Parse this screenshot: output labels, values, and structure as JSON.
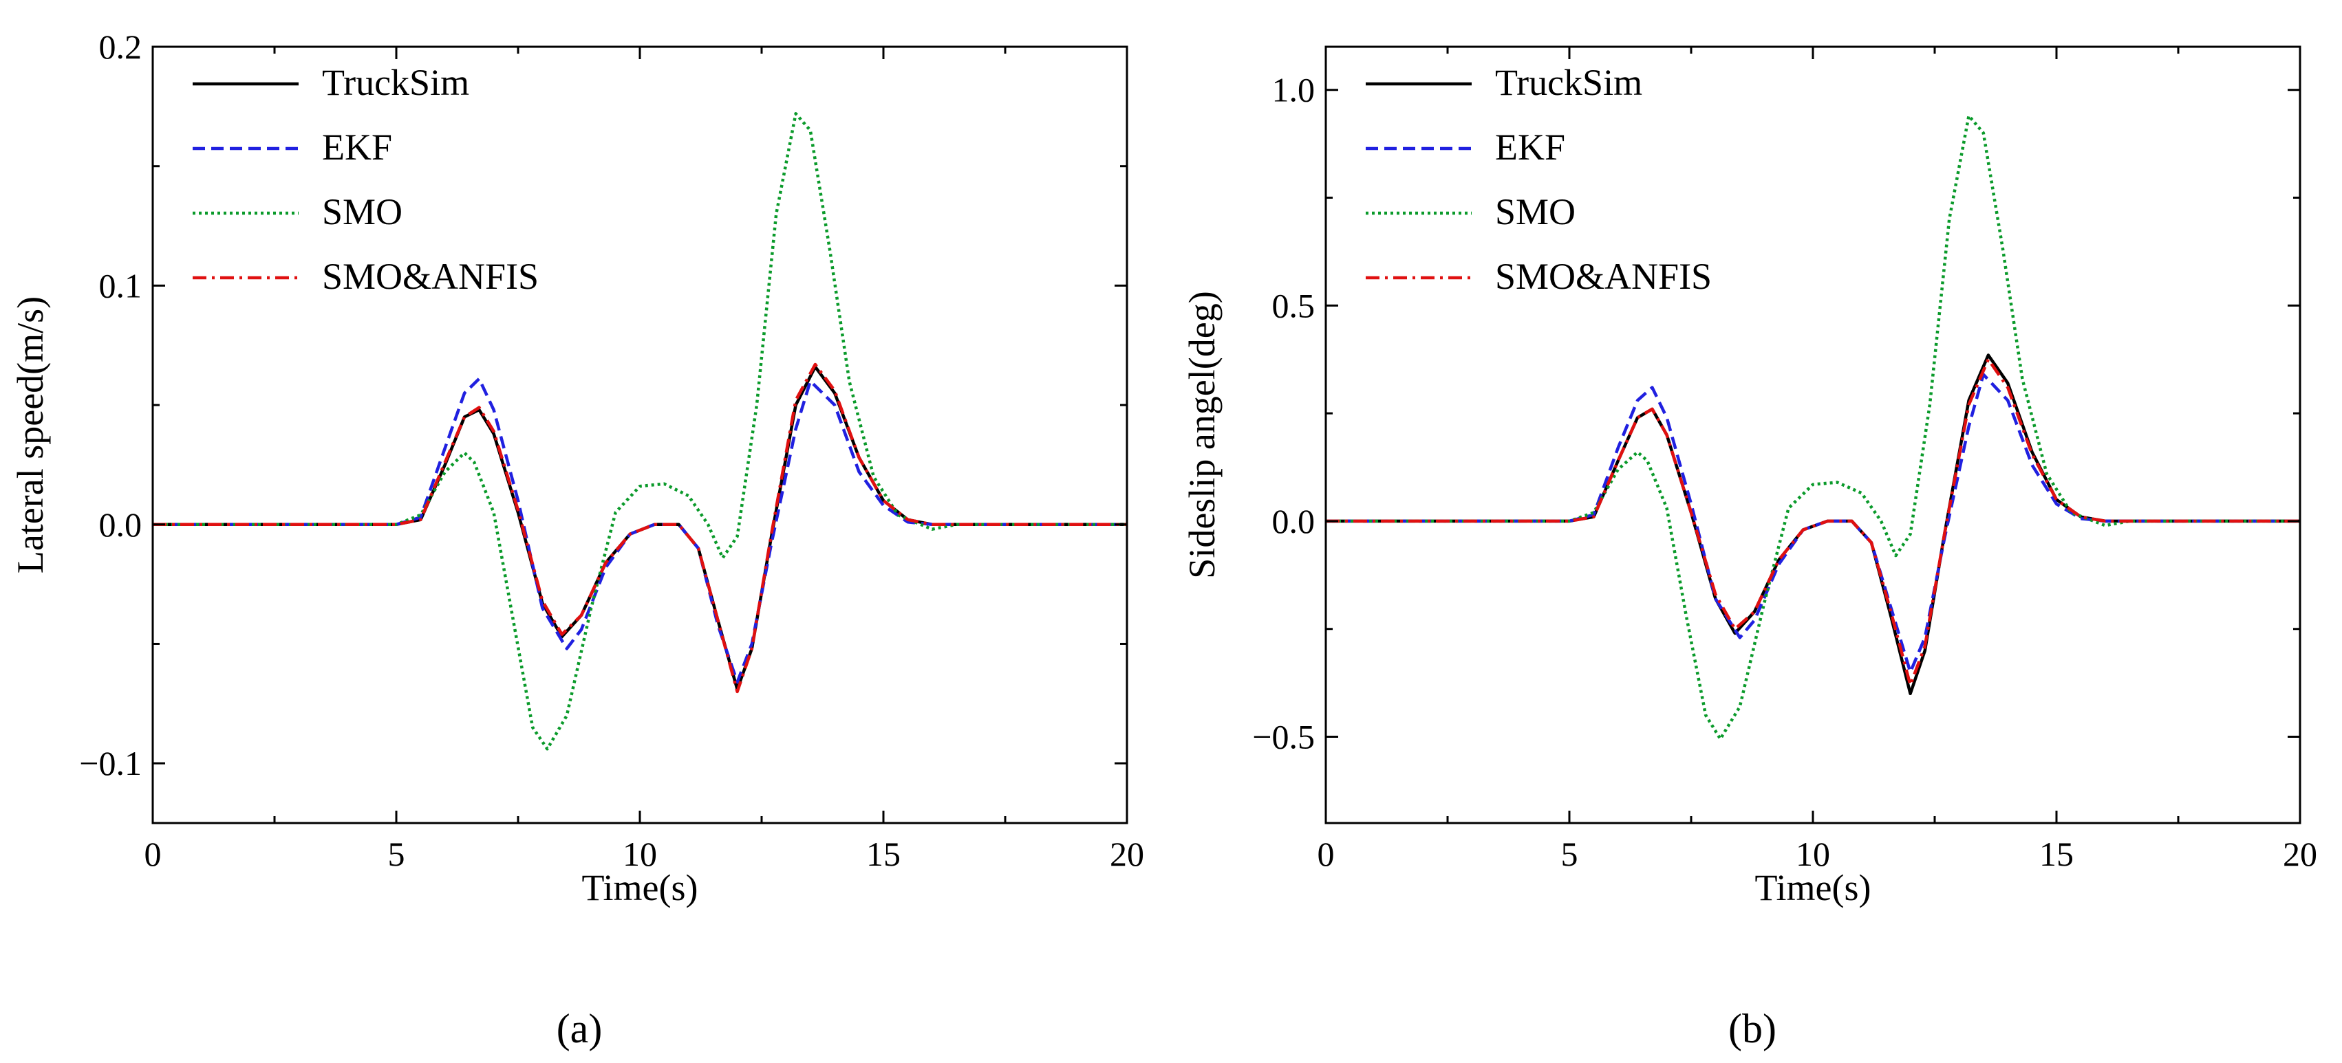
{
  "chart_data": [
    {
      "type": "line",
      "caption": "(a)",
      "xlabel": "Time(s)",
      "ylabel": "Lateral speed(m/s)",
      "xlim": [
        0,
        20
      ],
      "ylim": [
        -0.125,
        0.2
      ],
      "x_ticks": [
        0,
        5,
        10,
        15,
        20
      ],
      "x_tick_labels": [
        "0",
        "5",
        "10",
        "15",
        "20"
      ],
      "y_ticks": [
        -0.1,
        0.0,
        0.1,
        0.2
      ],
      "y_tick_labels": [
        "−0.1",
        "0.0",
        "0.1",
        "0.2"
      ],
      "legend_position": "top-left",
      "series": [
        {
          "name": "TruckSim",
          "color": "#000000",
          "dash": "solid",
          "points": [
            [
              0,
              0
            ],
            [
              5,
              0
            ],
            [
              5.5,
              0.002
            ],
            [
              6,
              0.025
            ],
            [
              6.4,
              0.045
            ],
            [
              6.7,
              0.048
            ],
            [
              7,
              0.038
            ],
            [
              7.5,
              0.005
            ],
            [
              8,
              -0.033
            ],
            [
              8.4,
              -0.047
            ],
            [
              8.8,
              -0.038
            ],
            [
              9.3,
              -0.016
            ],
            [
              9.8,
              -0.004
            ],
            [
              10.3,
              0
            ],
            [
              10.8,
              0
            ],
            [
              11.2,
              -0.01
            ],
            [
              11.6,
              -0.04
            ],
            [
              12,
              -0.069
            ],
            [
              12.3,
              -0.052
            ],
            [
              12.7,
              -0.005
            ],
            [
              13.2,
              0.05
            ],
            [
              13.6,
              0.066
            ],
            [
              14,
              0.055
            ],
            [
              14.5,
              0.028
            ],
            [
              15,
              0.01
            ],
            [
              15.5,
              0.002
            ],
            [
              16,
              0
            ],
            [
              20,
              0
            ]
          ]
        },
        {
          "name": "EKF",
          "color": "#2020e0",
          "dash": "dashed",
          "points": [
            [
              0,
              0
            ],
            [
              5,
              0
            ],
            [
              5.5,
              0.003
            ],
            [
              6,
              0.032
            ],
            [
              6.4,
              0.055
            ],
            [
              6.7,
              0.061
            ],
            [
              7,
              0.048
            ],
            [
              7.5,
              0.01
            ],
            [
              8,
              -0.035
            ],
            [
              8.5,
              -0.052
            ],
            [
              8.8,
              -0.044
            ],
            [
              9.3,
              -0.018
            ],
            [
              9.8,
              -0.004
            ],
            [
              10.3,
              0
            ],
            [
              10.8,
              0
            ],
            [
              11.2,
              -0.01
            ],
            [
              11.6,
              -0.042
            ],
            [
              12,
              -0.066
            ],
            [
              12.3,
              -0.05
            ],
            [
              12.7,
              -0.008
            ],
            [
              13.2,
              0.04
            ],
            [
              13.5,
              0.06
            ],
            [
              14,
              0.05
            ],
            [
              14.5,
              0.022
            ],
            [
              15,
              0.008
            ],
            [
              15.5,
              0.001
            ],
            [
              16,
              0
            ],
            [
              20,
              0
            ]
          ]
        },
        {
          "name": "SMO",
          "color": "#0a9a2a",
          "dash": "dotted",
          "points": [
            [
              0,
              0
            ],
            [
              5,
              0
            ],
            [
              5.5,
              0.004
            ],
            [
              6,
              0.022
            ],
            [
              6.4,
              0.03
            ],
            [
              6.6,
              0.026
            ],
            [
              7,
              0.005
            ],
            [
              7.4,
              -0.04
            ],
            [
              7.8,
              -0.085
            ],
            [
              8.1,
              -0.094
            ],
            [
              8.5,
              -0.08
            ],
            [
              9,
              -0.035
            ],
            [
              9.5,
              0.005
            ],
            [
              10,
              0.016
            ],
            [
              10.5,
              0.017
            ],
            [
              11,
              0.012
            ],
            [
              11.4,
              0
            ],
            [
              11.7,
              -0.014
            ],
            [
              12,
              -0.005
            ],
            [
              12.4,
              0.05
            ],
            [
              12.8,
              0.13
            ],
            [
              13.2,
              0.172
            ],
            [
              13.5,
              0.165
            ],
            [
              13.9,
              0.115
            ],
            [
              14.3,
              0.06
            ],
            [
              14.8,
              0.02
            ],
            [
              15.3,
              0.004
            ],
            [
              16,
              -0.002
            ],
            [
              16.5,
              0
            ],
            [
              20,
              0
            ]
          ]
        },
        {
          "name": "SMO&ANFIS",
          "color": "#e01010",
          "dash": "dashdot",
          "points": [
            [
              0,
              0
            ],
            [
              5,
              0
            ],
            [
              5.5,
              0.002
            ],
            [
              6,
              0.026
            ],
            [
              6.4,
              0.045
            ],
            [
              6.7,
              0.049
            ],
            [
              7,
              0.039
            ],
            [
              7.5,
              0.006
            ],
            [
              8,
              -0.032
            ],
            [
              8.4,
              -0.046
            ],
            [
              8.8,
              -0.038
            ],
            [
              9.3,
              -0.016
            ],
            [
              9.8,
              -0.004
            ],
            [
              10.3,
              0
            ],
            [
              10.8,
              0
            ],
            [
              11.2,
              -0.01
            ],
            [
              11.6,
              -0.04
            ],
            [
              12,
              -0.07
            ],
            [
              12.3,
              -0.052
            ],
            [
              12.7,
              -0.004
            ],
            [
              13.2,
              0.052
            ],
            [
              13.6,
              0.067
            ],
            [
              14,
              0.056
            ],
            [
              14.5,
              0.028
            ],
            [
              15,
              0.01
            ],
            [
              15.5,
              0.002
            ],
            [
              16,
              0
            ],
            [
              20,
              0
            ]
          ]
        }
      ]
    },
    {
      "type": "line",
      "caption": "(b)",
      "xlabel": "Time(s)",
      "ylabel": "Sideslip angel(deg)",
      "xlim": [
        0,
        20
      ],
      "ylim": [
        -0.7,
        1.1
      ],
      "x_ticks": [
        0,
        5,
        10,
        15,
        20
      ],
      "x_tick_labels": [
        "0",
        "5",
        "10",
        "15",
        "20"
      ],
      "y_ticks": [
        -0.5,
        0.0,
        0.5,
        1.0
      ],
      "y_tick_labels": [
        "−0.5",
        "0.0",
        "0.5",
        "1.0"
      ],
      "legend_position": "top-left",
      "series": [
        {
          "name": "TruckSim",
          "color": "#000000",
          "dash": "solid",
          "points": [
            [
              0,
              0
            ],
            [
              5,
              0
            ],
            [
              5.5,
              0.01
            ],
            [
              6,
              0.14
            ],
            [
              6.4,
              0.24
            ],
            [
              6.7,
              0.26
            ],
            [
              7,
              0.2
            ],
            [
              7.5,
              0.02
            ],
            [
              8,
              -0.18
            ],
            [
              8.4,
              -0.26
            ],
            [
              8.8,
              -0.21
            ],
            [
              9.3,
              -0.09
            ],
            [
              9.8,
              -0.02
            ],
            [
              10.3,
              0
            ],
            [
              10.8,
              0
            ],
            [
              11.2,
              -0.05
            ],
            [
              11.6,
              -0.22
            ],
            [
              12,
              -0.4
            ],
            [
              12.3,
              -0.3
            ],
            [
              12.7,
              -0.03
            ],
            [
              13.2,
              0.28
            ],
            [
              13.6,
              0.385
            ],
            [
              14,
              0.32
            ],
            [
              14.5,
              0.16
            ],
            [
              15,
              0.05
            ],
            [
              15.5,
              0.01
            ],
            [
              16,
              0
            ],
            [
              20,
              0
            ]
          ]
        },
        {
          "name": "EKF",
          "color": "#2020e0",
          "dash": "dashed",
          "points": [
            [
              0,
              0
            ],
            [
              5,
              0
            ],
            [
              5.5,
              0.015
            ],
            [
              6,
              0.17
            ],
            [
              6.4,
              0.28
            ],
            [
              6.7,
              0.31
            ],
            [
              7,
              0.24
            ],
            [
              7.5,
              0.04
            ],
            [
              8,
              -0.18
            ],
            [
              8.5,
              -0.27
            ],
            [
              8.8,
              -0.23
            ],
            [
              9.3,
              -0.1
            ],
            [
              9.8,
              -0.02
            ],
            [
              10.3,
              0
            ],
            [
              10.8,
              0
            ],
            [
              11.2,
              -0.05
            ],
            [
              11.6,
              -0.2
            ],
            [
              12,
              -0.35
            ],
            [
              12.3,
              -0.27
            ],
            [
              12.7,
              -0.04
            ],
            [
              13.2,
              0.22
            ],
            [
              13.5,
              0.34
            ],
            [
              14,
              0.28
            ],
            [
              14.5,
              0.13
            ],
            [
              15,
              0.04
            ],
            [
              15.5,
              0.006
            ],
            [
              16,
              0
            ],
            [
              20,
              0
            ]
          ]
        },
        {
          "name": "SMO",
          "color": "#0a9a2a",
          "dash": "dotted",
          "points": [
            [
              0,
              0
            ],
            [
              5,
              0
            ],
            [
              5.5,
              0.02
            ],
            [
              6,
              0.12
            ],
            [
              6.4,
              0.16
            ],
            [
              6.6,
              0.14
            ],
            [
              7,
              0.03
            ],
            [
              7.4,
              -0.22
            ],
            [
              7.8,
              -0.45
            ],
            [
              8.1,
              -0.505
            ],
            [
              8.5,
              -0.43
            ],
            [
              9,
              -0.19
            ],
            [
              9.5,
              0.03
            ],
            [
              10,
              0.085
            ],
            [
              10.5,
              0.09
            ],
            [
              11,
              0.065
            ],
            [
              11.4,
              0
            ],
            [
              11.7,
              -0.08
            ],
            [
              12,
              -0.03
            ],
            [
              12.4,
              0.27
            ],
            [
              12.8,
              0.7
            ],
            [
              13.2,
              0.94
            ],
            [
              13.5,
              0.9
            ],
            [
              13.9,
              0.63
            ],
            [
              14.3,
              0.33
            ],
            [
              14.8,
              0.11
            ],
            [
              15.3,
              0.02
            ],
            [
              16,
              -0.01
            ],
            [
              16.5,
              0
            ],
            [
              20,
              0
            ]
          ]
        },
        {
          "name": "SMO&ANFIS",
          "color": "#e01010",
          "dash": "dashdot",
          "points": [
            [
              0,
              0
            ],
            [
              5,
              0
            ],
            [
              5.5,
              0.01
            ],
            [
              6,
              0.14
            ],
            [
              6.4,
              0.24
            ],
            [
              6.7,
              0.26
            ],
            [
              7,
              0.2
            ],
            [
              7.5,
              0.02
            ],
            [
              8,
              -0.17
            ],
            [
              8.4,
              -0.25
            ],
            [
              8.8,
              -0.21
            ],
            [
              9.3,
              -0.09
            ],
            [
              9.8,
              -0.02
            ],
            [
              10.3,
              0
            ],
            [
              10.8,
              0
            ],
            [
              11.2,
              -0.05
            ],
            [
              11.6,
              -0.21
            ],
            [
              12,
              -0.38
            ],
            [
              12.3,
              -0.29
            ],
            [
              12.7,
              -0.03
            ],
            [
              13.2,
              0.27
            ],
            [
              13.6,
              0.375
            ],
            [
              14,
              0.31
            ],
            [
              14.5,
              0.155
            ],
            [
              15,
              0.05
            ],
            [
              15.5,
              0.01
            ],
            [
              16,
              0
            ],
            [
              20,
              0
            ]
          ]
        }
      ]
    }
  ]
}
